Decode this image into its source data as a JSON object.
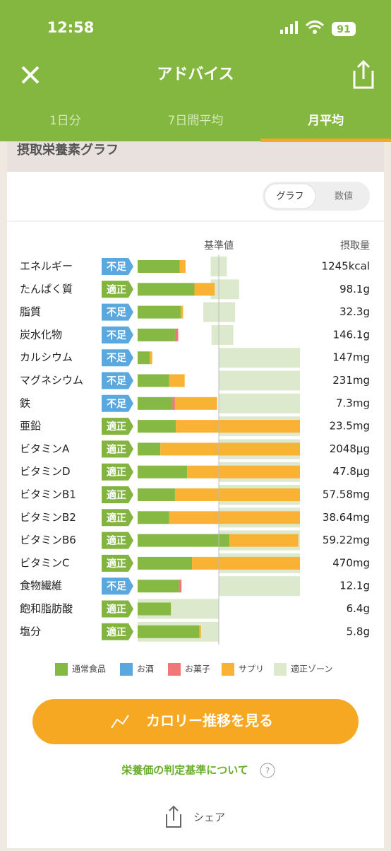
{
  "status_bar": {
    "time": "12:58",
    "battery": "91"
  },
  "header": {
    "title": "アドバイス"
  },
  "tabs": {
    "items": [
      "1日分",
      "7日間平均",
      "月平均"
    ],
    "active": "月平均"
  },
  "section": {
    "title": "摂取栄養素グラフ"
  },
  "toggle": {
    "items": [
      "グラフ",
      "数値"
    ],
    "active": "グラフ"
  },
  "chart": {
    "reference_label": "基準値",
    "amount_label": "摂取量",
    "xlim": [
      0,
      200
    ],
    "reference": 100,
    "statuses": [
      {
        "label": "不足",
        "color": "#5ba8de"
      },
      {
        "label": "適正",
        "color": "#82b43f"
      }
    ],
    "series": [
      {
        "name": "通常食品",
        "color": "#86b844"
      },
      {
        "name": "お酒",
        "color": "#5ba8de"
      },
      {
        "name": "お菓子",
        "color": "#f07878"
      },
      {
        "name": "サプリ",
        "color": "#f9b233"
      }
    ],
    "zone": {
      "name": "適正ゾーン",
      "color": "#dde9cc"
    },
    "rows": [
      {
        "name": "エネルギー",
        "status": "不足",
        "amount": "1245kcal",
        "segments": [
          52,
          0,
          0,
          7
        ],
        "zone": [
          90,
          110
        ]
      },
      {
        "name": "たんぱく質",
        "status": "適正",
        "amount": "98.1g",
        "segments": [
          70,
          0,
          0,
          25
        ],
        "zone": [
          90,
          125
        ]
      },
      {
        "name": "脂質",
        "status": "不足",
        "amount": "32.3g",
        "segments": [
          53,
          0,
          0,
          3
        ],
        "zone": [
          81,
          120
        ]
      },
      {
        "name": "炭水化物",
        "status": "不足",
        "amount": "146.1g",
        "segments": [
          46,
          0,
          4,
          0
        ],
        "zone": [
          91,
          118
        ]
      },
      {
        "name": "カルシウム",
        "status": "不足",
        "amount": "147mg",
        "segments": [
          15,
          0,
          0,
          3
        ],
        "zone": [
          100,
          200
        ]
      },
      {
        "name": "マグネシウム",
        "status": "不足",
        "amount": "231mg",
        "segments": [
          39,
          0,
          0,
          19
        ],
        "zone": [
          100,
          200
        ]
      },
      {
        "name": "鉄",
        "status": "不足",
        "amount": "7.3mg",
        "segments": [
          43,
          0,
          3,
          52
        ],
        "zone": [
          100,
          200
        ]
      },
      {
        "name": "亜鉛",
        "status": "適正",
        "amount": "23.5mg",
        "segments": [
          47,
          0,
          0,
          153
        ],
        "zone": [
          100,
          200
        ]
      },
      {
        "name": "ビタミンA",
        "status": "適正",
        "amount": "2048μg",
        "segments": [
          28,
          0,
          0,
          172
        ],
        "zone": [
          100,
          200
        ]
      },
      {
        "name": "ビタミンD",
        "status": "適正",
        "amount": "47.8μg",
        "segments": [
          61,
          0,
          0,
          139
        ],
        "zone": [
          100,
          200
        ]
      },
      {
        "name": "ビタミンB1",
        "status": "適正",
        "amount": "57.58mg",
        "segments": [
          46,
          0,
          0,
          154
        ],
        "zone": [
          100,
          200
        ]
      },
      {
        "name": "ビタミンB2",
        "status": "適正",
        "amount": "38.64mg",
        "segments": [
          39,
          0,
          0,
          161
        ],
        "zone": [
          100,
          200
        ]
      },
      {
        "name": "ビタミンB6",
        "status": "適正",
        "amount": "59.22mg",
        "segments": [
          113,
          0,
          0,
          85
        ],
        "zone": [
          100,
          200
        ]
      },
      {
        "name": "ビタミンC",
        "status": "適正",
        "amount": "470mg",
        "segments": [
          67,
          0,
          0,
          133
        ],
        "zone": [
          100,
          200
        ]
      },
      {
        "name": "食物繊維",
        "status": "不足",
        "amount": "12.1g",
        "segments": [
          51,
          0,
          3,
          0
        ],
        "zone": [
          100,
          200
        ]
      },
      {
        "name": "飽和脂肪酸",
        "status": "適正",
        "amount": "6.4g",
        "segments": [
          41,
          0,
          0,
          0
        ],
        "zone": [
          0,
          100
        ]
      },
      {
        "name": "塩分",
        "status": "適正",
        "amount": "5.8g",
        "segments": [
          76,
          0,
          0,
          2
        ],
        "zone": [
          0,
          100
        ]
      }
    ]
  },
  "button": {
    "label": "カロリー推移を見る"
  },
  "link": {
    "label": "栄養価の判定基準について"
  },
  "share": {
    "label": "シェア"
  }
}
